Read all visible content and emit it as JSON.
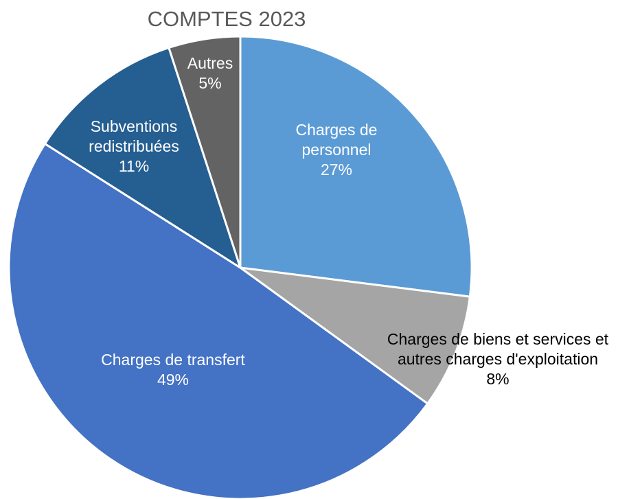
{
  "chart_data": {
    "type": "pie",
    "title": "COMPTES 2023",
    "categories": [
      "Charges de personnel",
      "Charges de biens et services et autres charges d'exploitation",
      "Charges de transfert",
      "Subventions redistribuées",
      "Autres"
    ],
    "values": [
      27,
      8,
      49,
      11,
      5
    ],
    "value_labels": [
      "27%",
      "8%",
      "49%",
      "11%",
      "5%"
    ],
    "colors": [
      "#5b9bd5",
      "#a5a5a5",
      "#4472c4",
      "#255e91",
      "#636363"
    ]
  }
}
